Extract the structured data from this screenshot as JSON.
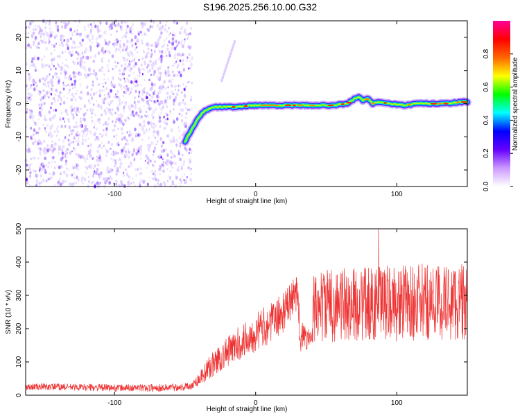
{
  "title": "S196.2025.256.10.00.G32",
  "chart_data": [
    {
      "type": "heatmap",
      "name": "spectrogram",
      "xlabel": "Height of straight line (km)",
      "ylabel": "Frequency (Hz)",
      "xlim": [
        -163,
        150
      ],
      "ylim": [
        -25,
        25
      ],
      "x_ticks": [
        -100,
        0,
        100
      ],
      "y_ticks": [
        -20,
        -10,
        0,
        10,
        20
      ],
      "colorbar": {
        "label": "Normalized spectral amplitude",
        "range": [
          0,
          1
        ],
        "ticks": [
          "0.0",
          "0.2",
          "0.4",
          "0.6",
          "0.8"
        ],
        "colors": [
          "#ffffff",
          "#cc99ff",
          "#6600ff",
          "#0000ff",
          "#00ffff",
          "#00ff00",
          "#ffff00",
          "#ff6600",
          "#ff0000",
          "#ff0099"
        ]
      },
      "ridge": {
        "x": [
          -50,
          -47,
          -43,
          -40,
          -37,
          -33,
          -30,
          -25,
          -15,
          0,
          15,
          30,
          45,
          55,
          65,
          70,
          73,
          76,
          80,
          83,
          88,
          95,
          105,
          115,
          125,
          135,
          145,
          150
        ],
        "y": [
          -11.5,
          -9,
          -6,
          -4,
          -2.5,
          -1.5,
          -1,
          -1,
          -1,
          -0.5,
          -0.5,
          -0.5,
          -0.5,
          -0.5,
          0,
          1.5,
          2,
          1,
          1.5,
          0,
          0.5,
          0,
          -0.5,
          0,
          0,
          0,
          0.5,
          0.5
        ]
      }
    },
    {
      "type": "line",
      "name": "snr",
      "xlabel": "Height of straight line (km)",
      "ylabel": "SNR (10 * v/v)",
      "xlim": [
        -163,
        150
      ],
      "ylim": [
        0,
        500
      ],
      "x_ticks": [
        -100,
        0,
        100
      ],
      "y_ticks": [
        0,
        100,
        200,
        300,
        400,
        500
      ],
      "color": "#ee3333",
      "trend": {
        "x": [
          -163,
          -140,
          -100,
          -70,
          -50,
          -45,
          -40,
          -30,
          -20,
          -10,
          0,
          10,
          20,
          28,
          30,
          31,
          32,
          40,
          41,
          43,
          50,
          70,
          90,
          110,
          130,
          150
        ],
        "y": [
          25,
          25,
          22,
          22,
          25,
          30,
          50,
          95,
          130,
          160,
          190,
          215,
          250,
          300,
          330,
          200,
          175,
          170,
          250,
          265,
          270,
          272,
          275,
          278,
          280,
          280
        ]
      },
      "noise": {
        "x": [
          -163,
          -45,
          -30,
          0,
          30,
          40,
          41,
          150
        ],
        "amp": [
          10,
          12,
          40,
          60,
          60,
          20,
          110,
          120
        ]
      },
      "peak": {
        "x": 87,
        "y": 500
      }
    }
  ]
}
